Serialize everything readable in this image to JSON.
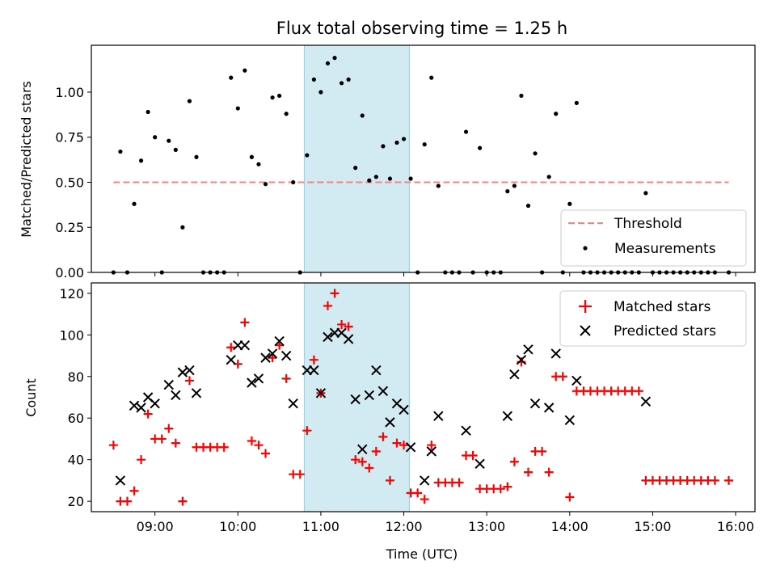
{
  "title": "Flux total observing time = 1.25 h",
  "colors": {
    "threshold": "#ff7f7f",
    "measurements": "#000000",
    "matched": "#ff0000",
    "predicted": "#000000",
    "highlight": "#add8e6"
  },
  "chart_data": [
    {
      "type": "scatter",
      "panel": "top",
      "ylabel": "Matched/Predicted stars",
      "xlim": [
        "08:14",
        "16:14"
      ],
      "ylim": [
        0,
        1.26
      ],
      "yticks": [
        0.0,
        0.25,
        0.5,
        0.75,
        1.0
      ],
      "ytick_labels": [
        "0.00",
        "0.25",
        "0.50",
        "0.75",
        "1.00"
      ],
      "highlight_span": [
        "10:48",
        "12:04"
      ],
      "legend": {
        "position": "lower-right",
        "entries": [
          "Threshold",
          "Measurements"
        ]
      },
      "threshold": {
        "name": "Threshold",
        "y": 0.5,
        "x": [
          "08:30",
          "15:55"
        ]
      },
      "series": [
        {
          "name": "Measurements",
          "points": [
            [
              "08:30",
              0
            ],
            [
              "08:35",
              0.67
            ],
            [
              "08:40",
              0
            ],
            [
              "08:45",
              0.38
            ],
            [
              "08:50",
              0.62
            ],
            [
              "08:55",
              0.89
            ],
            [
              "09:00",
              0.75
            ],
            [
              "09:05",
              0
            ],
            [
              "09:10",
              0.73
            ],
            [
              "09:15",
              0.68
            ],
            [
              "09:20",
              0.25
            ],
            [
              "09:25",
              0.95
            ],
            [
              "09:30",
              0.64
            ],
            [
              "09:35",
              0
            ],
            [
              "09:40",
              0
            ],
            [
              "09:45",
              0
            ],
            [
              "09:50",
              0
            ],
            [
              "09:55",
              1.08
            ],
            [
              "10:00",
              0.91
            ],
            [
              "10:05",
              1.12
            ],
            [
              "10:10",
              0.64
            ],
            [
              "10:15",
              0.6
            ],
            [
              "10:20",
              0.49
            ],
            [
              "10:25",
              0.97
            ],
            [
              "10:30",
              0.98
            ],
            [
              "10:35",
              0.88
            ],
            [
              "10:40",
              0.5
            ],
            [
              "10:45",
              0
            ],
            [
              "10:50",
              0.65
            ],
            [
              "10:55",
              1.07
            ],
            [
              "11:00",
              1.0
            ],
            [
              "11:05",
              1.16
            ],
            [
              "11:10",
              1.19
            ],
            [
              "11:15",
              1.05
            ],
            [
              "11:20",
              1.07
            ],
            [
              "11:25",
              0.58
            ],
            [
              "11:30",
              0.87
            ],
            [
              "11:35",
              0.51
            ],
            [
              "11:40",
              0.53
            ],
            [
              "11:45",
              0.7
            ],
            [
              "11:50",
              0.52
            ],
            [
              "11:55",
              0.72
            ],
            [
              "12:00",
              0.74
            ],
            [
              "12:05",
              0.52
            ],
            [
              "12:10",
              0
            ],
            [
              "12:15",
              0.71
            ],
            [
              "12:20",
              1.08
            ],
            [
              "12:25",
              0.48
            ],
            [
              "12:30",
              0
            ],
            [
              "12:35",
              0
            ],
            [
              "12:40",
              0
            ],
            [
              "12:45",
              0.78
            ],
            [
              "12:50",
              0
            ],
            [
              "12:55",
              0.69
            ],
            [
              "13:00",
              0
            ],
            [
              "13:05",
              0
            ],
            [
              "13:10",
              0
            ],
            [
              "13:15",
              0.45
            ],
            [
              "13:20",
              0.48
            ],
            [
              "13:25",
              0.98
            ],
            [
              "13:30",
              0.37
            ],
            [
              "13:35",
              0.66
            ],
            [
              "13:40",
              0
            ],
            [
              "13:45",
              0.53
            ],
            [
              "13:50",
              0.88
            ],
            [
              "13:55",
              0
            ],
            [
              "14:00",
              0.38
            ],
            [
              "14:05",
              0.94
            ],
            [
              "14:10",
              0
            ],
            [
              "14:15",
              0
            ],
            [
              "14:20",
              0
            ],
            [
              "14:25",
              0
            ],
            [
              "14:30",
              0
            ],
            [
              "14:35",
              0
            ],
            [
              "14:40",
              0
            ],
            [
              "14:45",
              0
            ],
            [
              "14:50",
              0
            ],
            [
              "14:55",
              0.44
            ],
            [
              "15:00",
              0
            ],
            [
              "15:05",
              0
            ],
            [
              "15:10",
              0
            ],
            [
              "15:15",
              0
            ],
            [
              "15:20",
              0
            ],
            [
              "15:25",
              0
            ],
            [
              "15:30",
              0
            ],
            [
              "15:35",
              0
            ],
            [
              "15:40",
              0
            ],
            [
              "15:45",
              0
            ],
            [
              "15:55",
              0
            ]
          ]
        }
      ]
    },
    {
      "type": "scatter",
      "panel": "bottom",
      "xlabel": "Time (UTC)",
      "ylabel": "Count",
      "xlim": [
        "08:14",
        "16:14"
      ],
      "ylim": [
        15,
        125
      ],
      "yticks": [
        20,
        40,
        60,
        80,
        100,
        120
      ],
      "xticks": [
        "09:00",
        "10:00",
        "11:00",
        "12:00",
        "13:00",
        "14:00",
        "15:00",
        "16:00"
      ],
      "highlight_span": [
        "10:48",
        "12:04"
      ],
      "legend": {
        "position": "upper-right",
        "entries": [
          "Matched stars",
          "Predicted stars"
        ]
      },
      "series": [
        {
          "name": "Matched stars",
          "marker": "+",
          "points": [
            [
              "08:30",
              47
            ],
            [
              "08:35",
              20
            ],
            [
              "08:40",
              20
            ],
            [
              "08:45",
              25
            ],
            [
              "08:50",
              40
            ],
            [
              "08:55",
              62
            ],
            [
              "09:00",
              50
            ],
            [
              "09:05",
              50
            ],
            [
              "09:10",
              55
            ],
            [
              "09:15",
              48
            ],
            [
              "09:20",
              20
            ],
            [
              "09:25",
              78
            ],
            [
              "09:30",
              46
            ],
            [
              "09:35",
              46
            ],
            [
              "09:40",
              46
            ],
            [
              "09:45",
              46
            ],
            [
              "09:50",
              46
            ],
            [
              "09:55",
              94
            ],
            [
              "10:00",
              86
            ],
            [
              "10:05",
              106
            ],
            [
              "10:10",
              49
            ],
            [
              "10:15",
              47
            ],
            [
              "10:20",
              43
            ],
            [
              "10:25",
              89
            ],
            [
              "10:30",
              95
            ],
            [
              "10:35",
              79
            ],
            [
              "10:40",
              33
            ],
            [
              "10:45",
              33
            ],
            [
              "10:50",
              54
            ],
            [
              "10:55",
              88
            ],
            [
              "11:00",
              72
            ],
            [
              "11:05",
              114
            ],
            [
              "11:10",
              120
            ],
            [
              "11:15",
              105
            ],
            [
              "11:20",
              104
            ],
            [
              "11:25",
              40
            ],
            [
              "11:30",
              39
            ],
            [
              "11:35",
              36
            ],
            [
              "11:40",
              44
            ],
            [
              "11:45",
              51
            ],
            [
              "11:50",
              30
            ],
            [
              "11:55",
              48
            ],
            [
              "12:00",
              47
            ],
            [
              "12:05",
              24
            ],
            [
              "12:10",
              24
            ],
            [
              "12:15",
              21
            ],
            [
              "12:20",
              47
            ],
            [
              "12:25",
              29
            ],
            [
              "12:30",
              29
            ],
            [
              "12:35",
              29
            ],
            [
              "12:40",
              29
            ],
            [
              "12:45",
              42
            ],
            [
              "12:50",
              42
            ],
            [
              "12:55",
              26
            ],
            [
              "13:00",
              26
            ],
            [
              "13:05",
              26
            ],
            [
              "13:10",
              26
            ],
            [
              "13:15",
              27
            ],
            [
              "13:20",
              39
            ],
            [
              "13:25",
              87
            ],
            [
              "13:30",
              34
            ],
            [
              "13:35",
              44
            ],
            [
              "13:40",
              44
            ],
            [
              "13:45",
              34
            ],
            [
              "13:50",
              80
            ],
            [
              "13:55",
              80
            ],
            [
              "14:00",
              22
            ],
            [
              "14:05",
              73
            ],
            [
              "14:10",
              73
            ],
            [
              "14:15",
              73
            ],
            [
              "14:20",
              73
            ],
            [
              "14:25",
              73
            ],
            [
              "14:30",
              73
            ],
            [
              "14:35",
              73
            ],
            [
              "14:40",
              73
            ],
            [
              "14:45",
              73
            ],
            [
              "14:50",
              73
            ],
            [
              "14:55",
              30
            ],
            [
              "15:00",
              30
            ],
            [
              "15:05",
              30
            ],
            [
              "15:10",
              30
            ],
            [
              "15:15",
              30
            ],
            [
              "15:20",
              30
            ],
            [
              "15:25",
              30
            ],
            [
              "15:30",
              30
            ],
            [
              "15:35",
              30
            ],
            [
              "15:40",
              30
            ],
            [
              "15:45",
              30
            ],
            [
              "15:55",
              30
            ]
          ]
        },
        {
          "name": "Predicted stars",
          "marker": "x",
          "points": [
            [
              "08:35",
              30
            ],
            [
              "08:45",
              66
            ],
            [
              "08:50",
              65
            ],
            [
              "08:55",
              70
            ],
            [
              "09:00",
              67
            ],
            [
              "09:10",
              76
            ],
            [
              "09:15",
              71
            ],
            [
              "09:20",
              82
            ],
            [
              "09:25",
              83
            ],
            [
              "09:30",
              72
            ],
            [
              "09:55",
              88
            ],
            [
              "10:00",
              95
            ],
            [
              "10:05",
              95
            ],
            [
              "10:10",
              77
            ],
            [
              "10:15",
              79
            ],
            [
              "10:20",
              89
            ],
            [
              "10:25",
              91
            ],
            [
              "10:30",
              97
            ],
            [
              "10:35",
              90
            ],
            [
              "10:40",
              67
            ],
            [
              "10:50",
              83
            ],
            [
              "10:55",
              83
            ],
            [
              "11:00",
              72
            ],
            [
              "11:05",
              99
            ],
            [
              "11:10",
              101
            ],
            [
              "11:15",
              101
            ],
            [
              "11:20",
              98
            ],
            [
              "11:25",
              69
            ],
            [
              "11:30",
              45
            ],
            [
              "11:35",
              71
            ],
            [
              "11:40",
              83
            ],
            [
              "11:45",
              73
            ],
            [
              "11:50",
              58
            ],
            [
              "11:55",
              67
            ],
            [
              "12:00",
              64
            ],
            [
              "12:05",
              46
            ],
            [
              "12:15",
              30
            ],
            [
              "12:20",
              44
            ],
            [
              "12:25",
              61
            ],
            [
              "12:45",
              54
            ],
            [
              "12:55",
              38
            ],
            [
              "13:15",
              61
            ],
            [
              "13:20",
              81
            ],
            [
              "13:25",
              88
            ],
            [
              "13:30",
              93
            ],
            [
              "13:35",
              67
            ],
            [
              "13:45",
              65
            ],
            [
              "13:50",
              91
            ],
            [
              "14:00",
              59
            ],
            [
              "14:05",
              78
            ],
            [
              "14:55",
              68
            ]
          ]
        }
      ]
    }
  ]
}
